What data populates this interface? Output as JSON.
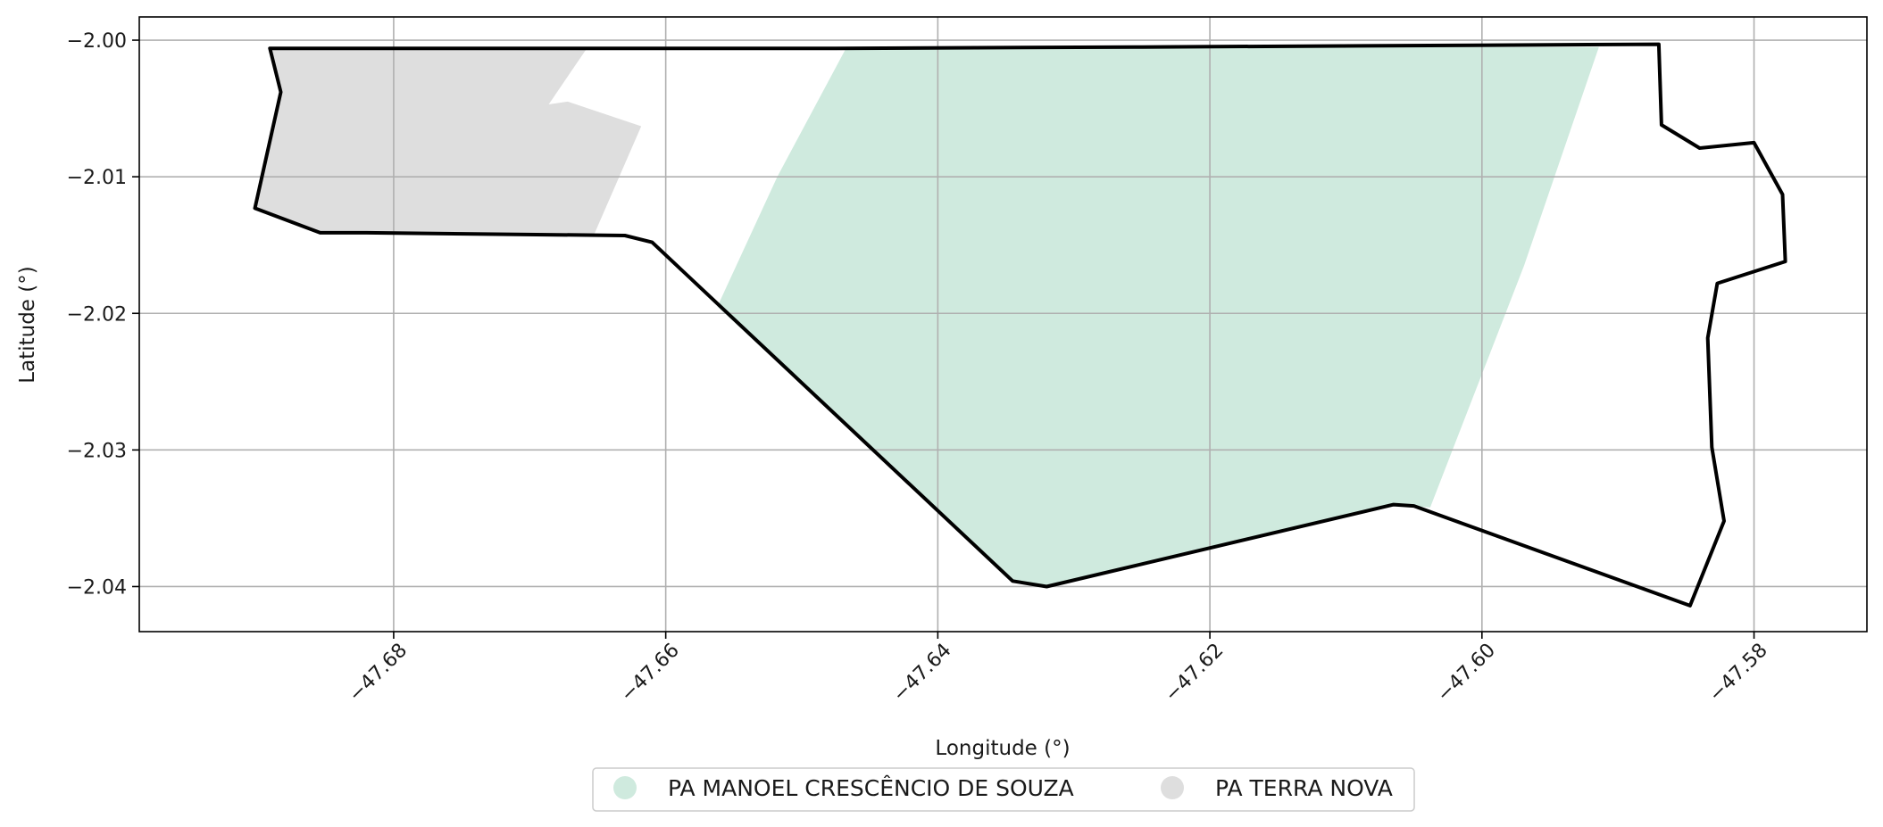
{
  "chart_data": {
    "type": "map",
    "xlabel": "Longitude (°)",
    "ylabel": "Latitude (°)",
    "xlim": [
      -47.6987,
      -47.5717
    ],
    "ylim": [
      -2.0433,
      -1.9983
    ],
    "xticks": [
      -47.68,
      -47.66,
      -47.64,
      -47.62,
      -47.6,
      -47.58
    ],
    "xtick_labels": [
      "−47.68",
      "−47.66",
      "−47.64",
      "−47.62",
      "−47.60",
      "−47.58"
    ],
    "yticks": [
      -2.0,
      -2.01,
      -2.02,
      -2.03,
      -2.04
    ],
    "ytick_labels": [
      "−2.00",
      "−2.01",
      "−2.02",
      "−2.03",
      "−2.04"
    ],
    "grid": true,
    "legend_position": "bottom-center",
    "boundary": {
      "stroke_color": "#000000",
      "coordinates": [
        [
          -47.6891,
          -2.0006
        ],
        [
          -47.6703,
          -2.0006
        ],
        [
          -47.6475,
          -2.0006
        ],
        [
          -47.625,
          -2.0005
        ],
        [
          -47.587,
          -2.0003
        ],
        [
          -47.5868,
          -2.0062
        ],
        [
          -47.584,
          -2.0079
        ],
        [
          -47.58,
          -2.0075
        ],
        [
          -47.5779,
          -2.0113
        ],
        [
          -47.5777,
          -2.0162
        ],
        [
          -47.5827,
          -2.0178
        ],
        [
          -47.5834,
          -2.0218
        ],
        [
          -47.5831,
          -2.0298
        ],
        [
          -47.5822,
          -2.0352
        ],
        [
          -47.5847,
          -2.0414
        ],
        [
          -47.605,
          -2.0341
        ],
        [
          -47.6065,
          -2.034
        ],
        [
          -47.632,
          -2.04
        ],
        [
          -47.6345,
          -2.0396
        ],
        [
          -47.661,
          -2.0148
        ],
        [
          -47.663,
          -2.0143
        ],
        [
          -47.682,
          -2.0141
        ],
        [
          -47.6854,
          -2.0141
        ],
        [
          -47.6902,
          -2.0123
        ],
        [
          -47.6883,
          -2.0038
        ]
      ]
    },
    "series": [
      {
        "name": "PA MANOEL CRESCÊNCIO DE SOUZA",
        "color": "#cfeade",
        "coordinates": [
          [
            -47.6467,
            -2.0005
          ],
          [
            -47.5914,
            -2.0005
          ],
          [
            -47.5969,
            -2.0165
          ],
          [
            -47.6038,
            -2.0342
          ],
          [
            -47.6065,
            -2.034
          ],
          [
            -47.632,
            -2.04
          ],
          [
            -47.6345,
            -2.0396
          ],
          [
            -47.6562,
            -2.0195
          ],
          [
            -47.6518,
            -2.01
          ]
        ]
      },
      {
        "name": "PA TERRA NOVA",
        "color": "#dedede",
        "coordinates": [
          [
            -47.6891,
            -2.0006
          ],
          [
            -47.6658,
            -2.0006
          ],
          [
            -47.6671,
            -2.0025
          ],
          [
            -47.6686,
            -2.0047
          ],
          [
            -47.6672,
            -2.0045
          ],
          [
            -47.6618,
            -2.0063
          ],
          [
            -47.6653,
            -2.0143
          ],
          [
            -47.682,
            -2.0141
          ],
          [
            -47.6854,
            -2.0141
          ],
          [
            -47.6902,
            -2.0123
          ],
          [
            -47.6883,
            -2.0038
          ]
        ]
      }
    ]
  }
}
